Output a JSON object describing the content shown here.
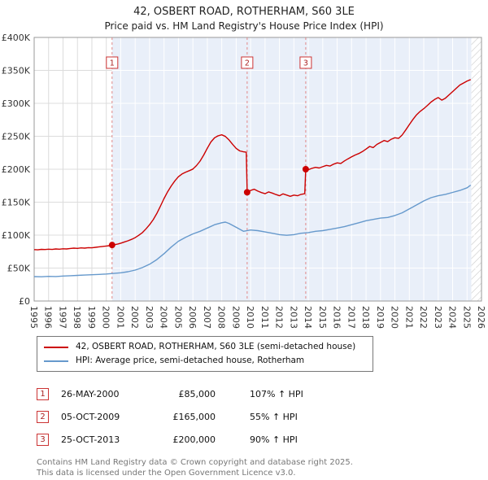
{
  "title": "42, OSBERT ROAD, ROTHERHAM, S60 3LE",
  "subtitle": "Price paid vs. HM Land Registry's House Price Index (HPI)",
  "chart_data": {
    "type": "line",
    "x_range": [
      1995,
      2026
    ],
    "y_range": [
      0,
      400000
    ],
    "x_ticks": [
      1995,
      1996,
      1997,
      1998,
      1999,
      2000,
      2001,
      2002,
      2003,
      2004,
      2005,
      2006,
      2007,
      2008,
      2009,
      2010,
      2011,
      2012,
      2013,
      2014,
      2015,
      2016,
      2017,
      2018,
      2019,
      2020,
      2021,
      2022,
      2023,
      2024,
      2025,
      2026
    ],
    "y_ticks": [
      {
        "v": 0,
        "label": "£0"
      },
      {
        "v": 50000,
        "label": "£50K"
      },
      {
        "v": 100000,
        "label": "£100K"
      },
      {
        "v": 150000,
        "label": "£150K"
      },
      {
        "v": 200000,
        "label": "£200K"
      },
      {
        "v": 250000,
        "label": "£250K"
      },
      {
        "v": 300000,
        "label": "£300K"
      },
      {
        "v": 350000,
        "label": "£350K"
      },
      {
        "v": 400000,
        "label": "£400K"
      }
    ],
    "shaded_region": [
      2000.4,
      2025.3
    ],
    "hatch_region": [
      2025.3,
      2026
    ],
    "colors": {
      "shade": "#e9eff9",
      "grid": "#dcdcdc",
      "dashed": "#e08888",
      "border": "#999999"
    },
    "sales": [
      {
        "n": "1",
        "x": 2000.4,
        "y": 85000
      },
      {
        "n": "2",
        "x": 2009.76,
        "y": 165000
      },
      {
        "n": "3",
        "x": 2013.82,
        "y": 200000
      }
    ],
    "series": [
      {
        "name": "42, OSBERT ROAD, ROTHERHAM, S60 3LE (semi-detached house)",
        "color": "#cc0000",
        "points": [
          [
            1995.0,
            78000
          ],
          [
            1995.25,
            77600
          ],
          [
            1995.5,
            78400
          ],
          [
            1995.75,
            78100
          ],
          [
            1996.0,
            78600
          ],
          [
            1996.25,
            78300
          ],
          [
            1996.5,
            79000
          ],
          [
            1996.75,
            78700
          ],
          [
            1997.0,
            79300
          ],
          [
            1997.25,
            79000
          ],
          [
            1997.5,
            79800
          ],
          [
            1997.75,
            80200
          ],
          [
            1998.0,
            79900
          ],
          [
            1998.25,
            80600
          ],
          [
            1998.5,
            80300
          ],
          [
            1998.75,
            81000
          ],
          [
            1999.0,
            80700
          ],
          [
            1999.25,
            81500
          ],
          [
            1999.5,
            82200
          ],
          [
            1999.75,
            82800
          ],
          [
            2000.0,
            83400
          ],
          [
            2000.2,
            84000
          ],
          [
            2000.4,
            85000
          ],
          [
            2000.6,
            85600
          ],
          [
            2000.8,
            86600
          ],
          [
            2001.0,
            87800
          ],
          [
            2001.25,
            89600
          ],
          [
            2001.5,
            91400
          ],
          [
            2001.75,
            93600
          ],
          [
            2002.0,
            96200
          ],
          [
            2002.25,
            99800
          ],
          [
            2002.5,
            103800
          ],
          [
            2002.75,
            109500
          ],
          [
            2003.0,
            115800
          ],
          [
            2003.25,
            123500
          ],
          [
            2003.5,
            132800
          ],
          [
            2003.75,
            143800
          ],
          [
            2004.0,
            155600
          ],
          [
            2004.25,
            165800
          ],
          [
            2004.5,
            174600
          ],
          [
            2004.75,
            182400
          ],
          [
            2005.0,
            188600
          ],
          [
            2005.25,
            192800
          ],
          [
            2005.5,
            195600
          ],
          [
            2005.75,
            197800
          ],
          [
            2006.0,
            200200
          ],
          [
            2006.25,
            205600
          ],
          [
            2006.5,
            212400
          ],
          [
            2006.75,
            221600
          ],
          [
            2007.0,
            231800
          ],
          [
            2007.25,
            241400
          ],
          [
            2007.5,
            247600
          ],
          [
            2007.75,
            250800
          ],
          [
            2008.0,
            252200
          ],
          [
            2008.25,
            249800
          ],
          [
            2008.5,
            244600
          ],
          [
            2008.75,
            237800
          ],
          [
            2009.0,
            231600
          ],
          [
            2009.25,
            227800
          ],
          [
            2009.5,
            226400
          ],
          [
            2009.7,
            225800
          ],
          [
            2009.76,
            165000
          ],
          [
            2010.0,
            167800
          ],
          [
            2010.25,
            169600
          ],
          [
            2010.5,
            166800
          ],
          [
            2010.75,
            164600
          ],
          [
            2011.0,
            162800
          ],
          [
            2011.25,
            165600
          ],
          [
            2011.5,
            163800
          ],
          [
            2011.75,
            161600
          ],
          [
            2012.0,
            159800
          ],
          [
            2012.25,
            162600
          ],
          [
            2012.5,
            160800
          ],
          [
            2012.75,
            158900
          ],
          [
            2013.0,
            160800
          ],
          [
            2013.25,
            159800
          ],
          [
            2013.5,
            161800
          ],
          [
            2013.75,
            162800
          ],
          [
            2013.82,
            200000
          ],
          [
            2014.0,
            199200
          ],
          [
            2014.25,
            201400
          ],
          [
            2014.5,
            202800
          ],
          [
            2014.75,
            201800
          ],
          [
            2015.0,
            203800
          ],
          [
            2015.25,
            205800
          ],
          [
            2015.5,
            204800
          ],
          [
            2015.75,
            207600
          ],
          [
            2016.0,
            209600
          ],
          [
            2016.25,
            208800
          ],
          [
            2016.5,
            212600
          ],
          [
            2016.75,
            215800
          ],
          [
            2017.0,
            218800
          ],
          [
            2017.25,
            221600
          ],
          [
            2017.5,
            223800
          ],
          [
            2017.75,
            226800
          ],
          [
            2018.0,
            230600
          ],
          [
            2018.25,
            234600
          ],
          [
            2018.5,
            232800
          ],
          [
            2018.75,
            237600
          ],
          [
            2019.0,
            240600
          ],
          [
            2019.25,
            243600
          ],
          [
            2019.5,
            241800
          ],
          [
            2019.75,
            245600
          ],
          [
            2020.0,
            247800
          ],
          [
            2020.25,
            246800
          ],
          [
            2020.5,
            251800
          ],
          [
            2020.75,
            259600
          ],
          [
            2021.0,
            267800
          ],
          [
            2021.25,
            275600
          ],
          [
            2021.5,
            282600
          ],
          [
            2021.75,
            287800
          ],
          [
            2022.0,
            291800
          ],
          [
            2022.25,
            296800
          ],
          [
            2022.5,
            301800
          ],
          [
            2022.75,
            305800
          ],
          [
            2023.0,
            308800
          ],
          [
            2023.25,
            304800
          ],
          [
            2023.5,
            307800
          ],
          [
            2023.75,
            312800
          ],
          [
            2024.0,
            317800
          ],
          [
            2024.25,
            322800
          ],
          [
            2024.5,
            327800
          ],
          [
            2024.75,
            330800
          ],
          [
            2025.0,
            333800
          ],
          [
            2025.25,
            336000
          ]
        ]
      },
      {
        "name": "HPI: Average price, semi-detached house, Rotherham",
        "color": "#6699cc",
        "points": [
          [
            1995.0,
            37000
          ],
          [
            1995.5,
            36800
          ],
          [
            1996.0,
            37400
          ],
          [
            1996.5,
            37200
          ],
          [
            1997.0,
            37900
          ],
          [
            1997.5,
            38400
          ],
          [
            1998.0,
            38900
          ],
          [
            1998.5,
            39400
          ],
          [
            1999.0,
            39900
          ],
          [
            1999.5,
            40400
          ],
          [
            2000.0,
            41000
          ],
          [
            2000.5,
            41900
          ],
          [
            2001.0,
            42900
          ],
          [
            2001.5,
            44400
          ],
          [
            2002.0,
            46900
          ],
          [
            2002.5,
            50800
          ],
          [
            2003.0,
            55800
          ],
          [
            2003.5,
            62800
          ],
          [
            2004.0,
            71800
          ],
          [
            2004.5,
            81800
          ],
          [
            2005.0,
            90800
          ],
          [
            2005.5,
            96800
          ],
          [
            2006.0,
            101800
          ],
          [
            2006.5,
            105800
          ],
          [
            2007.0,
            110800
          ],
          [
            2007.5,
            115800
          ],
          [
            2008.0,
            118800
          ],
          [
            2008.25,
            119800
          ],
          [
            2008.5,
            117800
          ],
          [
            2009.0,
            111800
          ],
          [
            2009.5,
            105800
          ],
          [
            2010.0,
            107800
          ],
          [
            2010.5,
            106800
          ],
          [
            2011.0,
            104800
          ],
          [
            2011.5,
            102800
          ],
          [
            2012.0,
            100800
          ],
          [
            2012.5,
            99800
          ],
          [
            2013.0,
            100800
          ],
          [
            2013.5,
            102800
          ],
          [
            2014.0,
            103800
          ],
          [
            2014.5,
            105800
          ],
          [
            2015.0,
            106800
          ],
          [
            2015.5,
            108800
          ],
          [
            2016.0,
            110800
          ],
          [
            2016.5,
            112800
          ],
          [
            2017.0,
            115800
          ],
          [
            2017.5,
            118800
          ],
          [
            2018.0,
            121800
          ],
          [
            2018.5,
            123800
          ],
          [
            2019.0,
            125800
          ],
          [
            2019.5,
            126800
          ],
          [
            2020.0,
            129800
          ],
          [
            2020.5,
            133800
          ],
          [
            2021.0,
            139800
          ],
          [
            2021.5,
            145800
          ],
          [
            2022.0,
            151800
          ],
          [
            2022.5,
            156800
          ],
          [
            2023.0,
            159800
          ],
          [
            2023.5,
            161800
          ],
          [
            2024.0,
            164800
          ],
          [
            2024.5,
            167800
          ],
          [
            2025.0,
            171800
          ],
          [
            2025.25,
            175800
          ]
        ]
      }
    ]
  },
  "transactions": [
    {
      "n": "1",
      "date": "26-MAY-2000",
      "price": "£85,000",
      "hpi": "107% ↑ HPI"
    },
    {
      "n": "2",
      "date": "05-OCT-2009",
      "price": "£165,000",
      "hpi": "55% ↑ HPI"
    },
    {
      "n": "3",
      "date": "25-OCT-2013",
      "price": "£200,000",
      "hpi": "90% ↑ HPI"
    }
  ],
  "footer": {
    "line1": "Contains HM Land Registry data © Crown copyright and database right 2025.",
    "line2": "This data is licensed under the Open Government Licence v3.0."
  }
}
